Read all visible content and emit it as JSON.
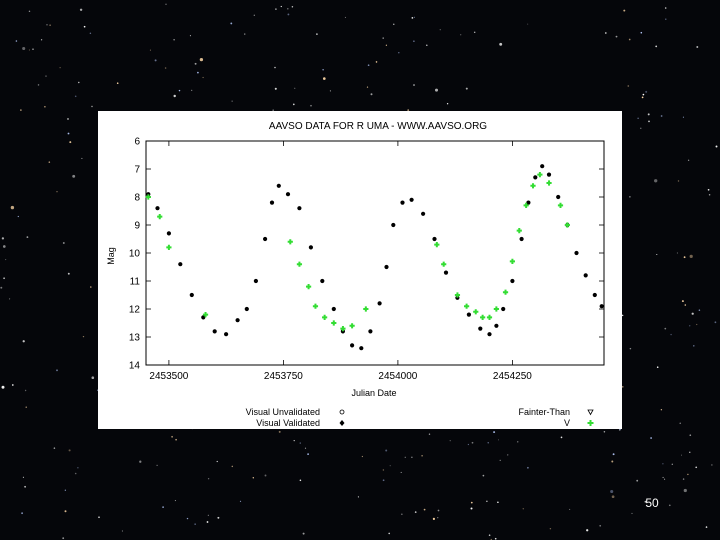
{
  "slide": {
    "number": "50"
  },
  "chart_data": {
    "type": "scatter",
    "title": "AAVSO DATA FOR R UMA - WWW.AAVSO.ORG",
    "xlabel": "Julian Date",
    "ylabel": "Mag",
    "xlim": [
      2453450,
      2454450
    ],
    "ylim": [
      14,
      6
    ],
    "y_inverted": true,
    "x_ticks": [
      2453500,
      2453750,
      2454000,
      2454250
    ],
    "x_tick_labels": [
      "2453500",
      "2453750",
      "2454000",
      "2454250"
    ],
    "y_ticks": [
      6,
      7,
      8,
      9,
      10,
      11,
      12,
      13,
      14
    ],
    "y_tick_labels": [
      "6",
      "7",
      "8",
      "9",
      "10",
      "11",
      "12",
      "13",
      "14"
    ],
    "grid": false,
    "legend_position": "bottom",
    "legend": [
      {
        "label": "Visual Unvalidated",
        "marker": "open-circle"
      },
      {
        "label": "Visual Validated",
        "marker": "filled-diamond"
      },
      {
        "label": "Fainter-Than",
        "marker": "open-triangle"
      },
      {
        "label": "V",
        "marker": "green-cross"
      }
    ],
    "series": [
      {
        "name": "Visual Validated",
        "color": "#000000",
        "x": [
          2453455,
          2453475,
          2453500,
          2453525,
          2453550,
          2453575,
          2453600,
          2453625,
          2453650,
          2453670,
          2453690,
          2453710,
          2453725,
          2453740,
          2453760,
          2453785,
          2453810,
          2453835,
          2453860,
          2453880,
          2453900,
          2453920,
          2453940,
          2453960,
          2453975,
          2453990,
          2454010,
          2454030,
          2454055,
          2454080,
          2454105,
          2454130,
          2454155,
          2454180,
          2454200,
          2454215,
          2454230,
          2454250,
          2454270,
          2454285,
          2454300,
          2454315,
          2454330,
          2454350,
          2454370,
          2454390,
          2454410,
          2454430,
          2454445
        ],
        "y": [
          7.9,
          8.4,
          9.3,
          10.4,
          11.5,
          12.3,
          12.8,
          12.9,
          12.4,
          12.0,
          11.0,
          9.5,
          8.2,
          7.6,
          7.9,
          8.4,
          9.8,
          11.0,
          12.0,
          12.8,
          13.3,
          13.4,
          12.8,
          11.8,
          10.5,
          9.0,
          8.2,
          8.1,
          8.6,
          9.5,
          10.7,
          11.6,
          12.2,
          12.7,
          12.9,
          12.6,
          12.0,
          11.0,
          9.5,
          8.2,
          7.3,
          6.9,
          7.2,
          8.0,
          9.0,
          10.0,
          10.8,
          11.5,
          11.9
        ]
      },
      {
        "name": "V",
        "color": "#33dd33",
        "x": [
          2453455,
          2453480,
          2453500,
          2453580,
          2453765,
          2453785,
          2453805,
          2453820,
          2453840,
          2453860,
          2453880,
          2453900,
          2453930,
          2454085,
          2454100,
          2454130,
          2454150,
          2454170,
          2454185,
          2454200,
          2454215,
          2454235,
          2454250,
          2454265,
          2454280,
          2454295,
          2454310,
          2454330,
          2454355,
          2454370
        ],
        "y": [
          8.0,
          8.7,
          9.8,
          12.2,
          9.6,
          10.4,
          11.2,
          11.9,
          12.3,
          12.5,
          12.7,
          12.6,
          12.0,
          9.7,
          10.4,
          11.5,
          11.9,
          12.1,
          12.3,
          12.3,
          12.0,
          11.4,
          10.3,
          9.2,
          8.3,
          7.6,
          7.2,
          7.5,
          8.3,
          9.0
        ]
      }
    ]
  }
}
